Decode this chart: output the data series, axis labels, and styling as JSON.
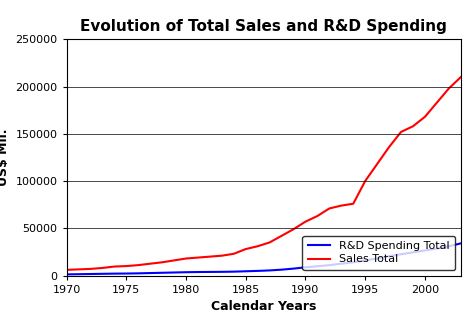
{
  "title": "Evolution of Total Sales and R&D Spending",
  "xlabel": "Calendar Years",
  "ylabel": "US$ Mil.",
  "ylim": [
    0,
    250000
  ],
  "xlim": [
    1970,
    2003
  ],
  "yticks": [
    0,
    50000,
    100000,
    150000,
    200000,
    250000
  ],
  "xticks": [
    1970,
    1975,
    1980,
    1985,
    1990,
    1995,
    2000
  ],
  "rd_color": "#0000FF",
  "sales_color": "#FF0000",
  "rd_label": "R&D Spending Total",
  "sales_label": "Sales Total",
  "years": [
    1970,
    1971,
    1972,
    1973,
    1974,
    1975,
    1976,
    1977,
    1978,
    1979,
    1980,
    1981,
    1982,
    1983,
    1984,
    1985,
    1986,
    1987,
    1988,
    1989,
    1990,
    1991,
    1992,
    1993,
    1994,
    1995,
    1996,
    1997,
    1998,
    1999,
    2000,
    2001,
    2002,
    2003
  ],
  "rd_values": [
    1200,
    1400,
    1600,
    1800,
    2000,
    2100,
    2300,
    2600,
    2900,
    3200,
    3500,
    3700,
    3800,
    3900,
    4100,
    4500,
    4900,
    5400,
    6200,
    7300,
    8700,
    9800,
    11000,
    12500,
    14000,
    16000,
    18000,
    20500,
    22500,
    24500,
    26500,
    28500,
    31000,
    34000
  ],
  "sales_values": [
    6000,
    6500,
    7000,
    8000,
    9500,
    10000,
    11000,
    12500,
    14000,
    16000,
    18000,
    19000,
    20000,
    21000,
    23000,
    28000,
    31000,
    35000,
    42000,
    49000,
    57000,
    63000,
    71000,
    74000,
    76000,
    100000,
    118000,
    136000,
    152000,
    158000,
    168000,
    183000,
    198000,
    210000
  ],
  "background_color": "#FFFFFF",
  "title_fontsize": 11,
  "label_fontsize": 9,
  "tick_fontsize": 8,
  "legend_fontsize": 8
}
